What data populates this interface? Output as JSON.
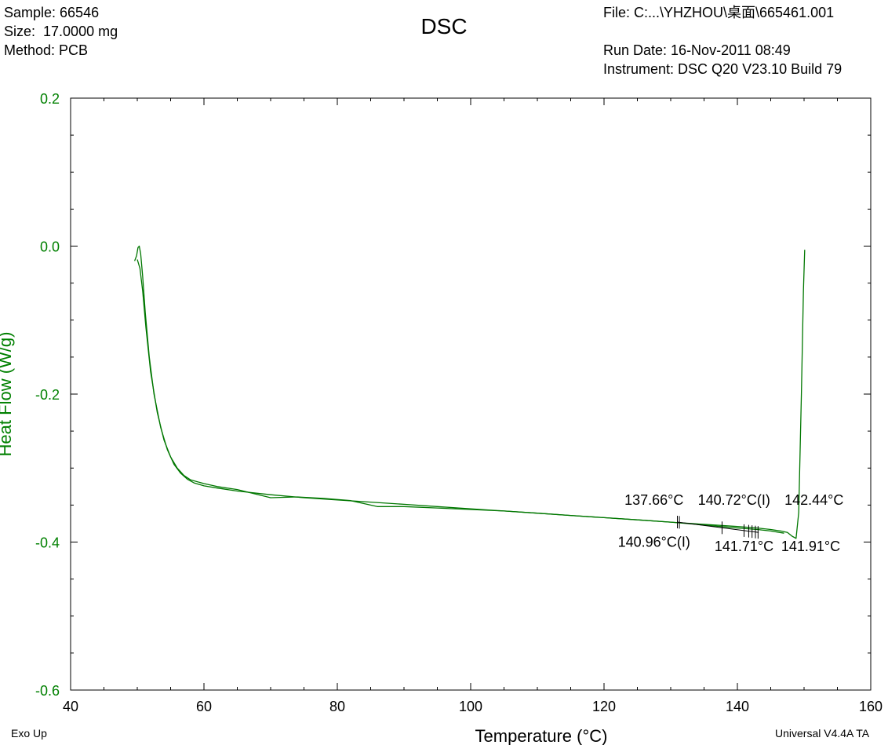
{
  "header": {
    "sample": "Sample: 66546",
    "size": "Size:  17.0000 mg",
    "method": "Method: PCB",
    "file": "File: C:...\\YHZHOU\\桌面\\665461.001",
    "run_date": "Run Date: 16-Nov-2011 08:49",
    "instrument": "Instrument: DSC Q20 V23.10 Build 79"
  },
  "footer": {
    "left": "Exo Up",
    "right": "Universal V4.4A TA"
  },
  "chart_data": {
    "type": "line",
    "title": "DSC",
    "xlabel": "Temperature (°C)",
    "ylabel": "Heat Flow (W/g)",
    "xlim": [
      40,
      160
    ],
    "ylim": [
      -0.6,
      0.2
    ],
    "x_ticks": [
      40,
      60,
      80,
      100,
      120,
      140,
      160
    ],
    "y_ticks": [
      -0.6,
      -0.4,
      -0.2,
      0.0,
      0.2
    ],
    "x_tick_labels": [
      "40",
      "60",
      "80",
      "100",
      "120",
      "140",
      "160"
    ],
    "y_tick_labels": [
      "-0.6",
      "-0.4",
      "-0.2",
      "0.0",
      "0.2"
    ],
    "grid": false,
    "colors": {
      "curve": "#007700",
      "axis_label": "#008000",
      "tick_label_y": "#008000",
      "annotation": "#000000"
    },
    "series": [
      {
        "x": [
          49.6,
          49.9,
          50.1,
          50.3,
          50.5,
          50.8,
          51.2,
          51.8,
          52.5,
          53.5,
          54.5,
          55.5,
          56.5,
          57.5,
          58.5,
          60,
          62,
          65,
          70,
          75,
          80,
          85,
          90,
          95,
          100,
          105,
          110,
          115,
          120,
          125,
          130,
          135,
          140,
          143,
          145,
          146.5,
          147.5,
          148.2,
          148.8,
          149.2,
          149.6,
          149.9,
          150.1
        ],
        "y": [
          -0.02,
          -0.013,
          -0.002,
          0.0,
          -0.01,
          -0.04,
          -0.09,
          -0.15,
          -0.2,
          -0.245,
          -0.275,
          -0.295,
          -0.307,
          -0.315,
          -0.32,
          -0.324,
          -0.327,
          -0.331,
          -0.336,
          -0.34,
          -0.343,
          -0.346,
          -0.349,
          -0.352,
          -0.355,
          -0.358,
          -0.361,
          -0.364,
          -0.367,
          -0.37,
          -0.373,
          -0.376,
          -0.379,
          -0.381,
          -0.383,
          -0.385,
          -0.387,
          -0.392,
          -0.395,
          -0.36,
          -0.2,
          -0.06,
          -0.005
        ]
      },
      {
        "x": [
          50.0,
          50.4,
          50.8,
          51.3,
          52.0,
          53.0,
          54.0,
          55.0,
          56.0,
          57.0,
          58.0,
          60,
          62,
          65,
          70,
          74,
          78,
          82,
          86,
          90,
          95,
          100,
          105,
          110,
          115,
          120,
          125,
          130,
          135,
          140,
          143,
          145,
          147
        ],
        "y": [
          -0.018,
          -0.03,
          -0.06,
          -0.11,
          -0.17,
          -0.225,
          -0.262,
          -0.285,
          -0.3,
          -0.31,
          -0.316,
          -0.321,
          -0.325,
          -0.329,
          -0.34,
          -0.339,
          -0.341,
          -0.344,
          -0.352,
          -0.352,
          -0.354,
          -0.356,
          -0.358,
          -0.361,
          -0.364,
          -0.367,
          -0.37,
          -0.373,
          -0.377,
          -0.381,
          -0.383,
          -0.385,
          -0.388
        ]
      }
    ],
    "annotations": [
      {
        "text": "137.66°C",
        "x": 127.5,
        "y": -0.343
      },
      {
        "text": "140.72°C(I)",
        "x": 139.5,
        "y": -0.343
      },
      {
        "text": "142.44°C",
        "x": 151.5,
        "y": -0.343
      },
      {
        "text": "140.96°C(I)",
        "x": 127.5,
        "y": -0.4
      },
      {
        "text": "141.71°C",
        "x": 141.0,
        "y": -0.406
      },
      {
        "text": "141.91°C",
        "x": 151.0,
        "y": -0.406
      }
    ],
    "markers": [
      131.0,
      131.3,
      137.7,
      141.0,
      141.7,
      142.2,
      142.7,
      143.1
    ]
  }
}
